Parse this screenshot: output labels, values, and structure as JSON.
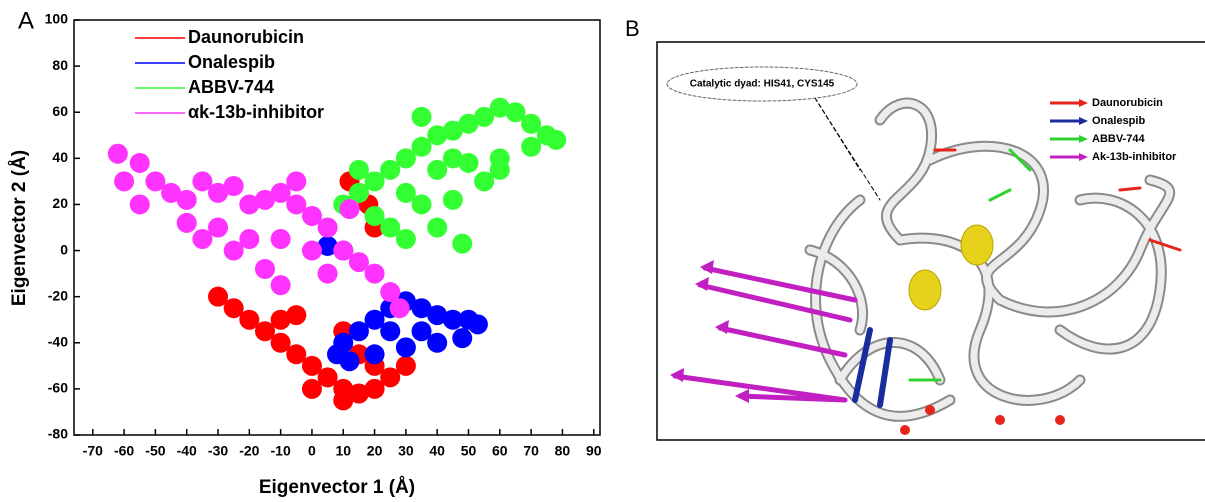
{
  "chart_data": {
    "type": "scatter",
    "panel_label": "A",
    "xlabel": "Eigenvector 1 (Å)",
    "ylabel": "Eigenvector 2 (Å)",
    "xlim": [
      -76,
      92
    ],
    "ylim": [
      -80,
      100
    ],
    "xticks": [
      -70,
      -60,
      -50,
      -40,
      -30,
      -20,
      -10,
      0,
      10,
      20,
      30,
      40,
      50,
      60,
      70,
      80,
      90
    ],
    "yticks": [
      -80,
      -60,
      -40,
      -20,
      0,
      20,
      40,
      60,
      80,
      100
    ],
    "legend": "upper left",
    "series": [
      {
        "name": "Daunorubicin",
        "color": "#ff0000",
        "x": [
          -30,
          -25,
          -20,
          -15,
          -10,
          -5,
          0,
          5,
          10,
          15,
          20,
          25,
          30,
          15,
          20,
          -10,
          -5,
          10,
          0,
          15,
          12,
          18,
          20,
          10
        ],
        "values": [
          -20,
          -25,
          -30,
          -35,
          -40,
          -45,
          -50,
          -55,
          -60,
          -62,
          -60,
          -55,
          -50,
          -45,
          -50,
          -30,
          -28,
          -65,
          -60,
          25,
          30,
          20,
          10,
          -35
        ]
      },
      {
        "name": "Onalespib",
        "color": "#0000ff",
        "x": [
          8,
          10,
          15,
          20,
          25,
          30,
          35,
          40,
          45,
          50,
          53,
          48,
          40,
          30,
          20,
          12,
          25,
          35,
          10,
          5
        ],
        "values": [
          -45,
          -40,
          -35,
          -30,
          -25,
          -22,
          -25,
          -28,
          -30,
          -30,
          -32,
          -38,
          -40,
          -42,
          -45,
          -48,
          -35,
          -35,
          0,
          2
        ]
      },
      {
        "name": "ABBV-744",
        "color": "#33ff33",
        "x": [
          10,
          15,
          20,
          25,
          30,
          35,
          40,
          45,
          50,
          55,
          60,
          65,
          70,
          75,
          78,
          70,
          60,
          50,
          40,
          30,
          35,
          45,
          55,
          25,
          30,
          40,
          48,
          60,
          20,
          15,
          35,
          45
        ],
        "values": [
          20,
          25,
          30,
          35,
          40,
          45,
          50,
          52,
          55,
          58,
          62,
          60,
          55,
          50,
          48,
          45,
          40,
          38,
          35,
          25,
          20,
          22,
          30,
          10,
          5,
          10,
          3,
          35,
          15,
          35,
          58,
          40
        ]
      },
      {
        "name": "αk-13b-inhibitor",
        "color": "#ff33ff",
        "x": [
          -62,
          -55,
          -60,
          -50,
          -45,
          -40,
          -55,
          -35,
          -30,
          -25,
          -20,
          -15,
          -10,
          -5,
          0,
          5,
          -40,
          -30,
          -20,
          -10,
          0,
          10,
          15,
          20,
          25,
          28,
          5,
          -15,
          -10,
          -25,
          -35,
          12,
          -5
        ],
        "values": [
          42,
          38,
          30,
          30,
          25,
          22,
          20,
          30,
          25,
          28,
          20,
          22,
          25,
          20,
          15,
          10,
          12,
          10,
          5,
          5,
          0,
          0,
          -5,
          -10,
          -18,
          -25,
          -10,
          -8,
          -15,
          0,
          5,
          18,
          30
        ]
      }
    ]
  },
  "panel_b": {
    "panel_label": "B",
    "annotation": "Catalytic dyad: HIS41, CYS145",
    "legend": [
      {
        "name": "Daunorubicin",
        "color": "#e8231b"
      },
      {
        "name": "Onalespib",
        "color": "#1b2c9e"
      },
      {
        "name": "ABBV-744",
        "color": "#2ed12e"
      },
      {
        "name": "Ak-13b-inhibitor",
        "color": "#c21fc2"
      }
    ]
  }
}
